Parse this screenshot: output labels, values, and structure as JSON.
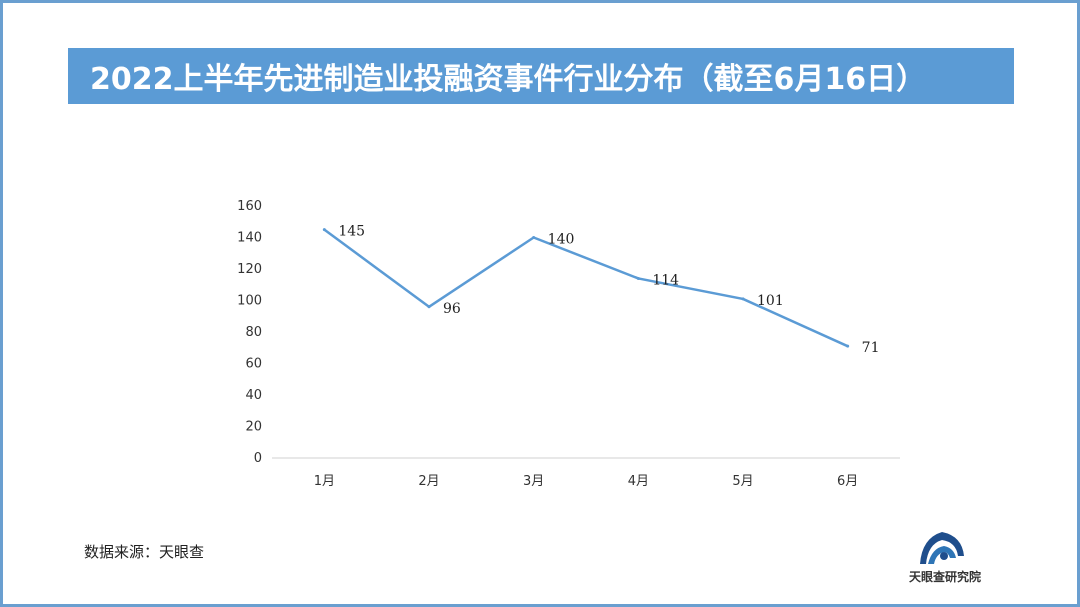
{
  "title": "2022上半年先进制造业投融资事件行业分布（截至6月16日）",
  "source": "数据来源：天眼查",
  "logo_text": "天眼查研究院",
  "colors": {
    "title_bar": "#5b9bd5",
    "line": "#5b9bd5",
    "frame": "#6a9fd0"
  },
  "chart_data": {
    "type": "line",
    "categories": [
      "1月",
      "2月",
      "3月",
      "4月",
      "5月",
      "6月"
    ],
    "series": [
      {
        "values": [
          145,
          96,
          140,
          114,
          101,
          71
        ]
      }
    ],
    "data_labels": [
      "145",
      "96",
      "140",
      "114",
      "101",
      "71"
    ],
    "yticks": [
      "0",
      "20",
      "40",
      "60",
      "80",
      "100",
      "120",
      "140",
      "160"
    ],
    "ylim": [
      0,
      160
    ],
    "grid": false,
    "legend": "none"
  }
}
